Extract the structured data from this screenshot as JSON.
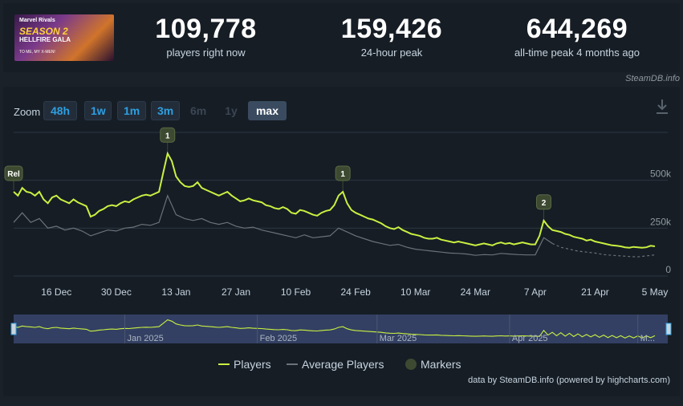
{
  "game": {
    "banner_sub": "Marvel Rivals",
    "banner_title": "SEASON 2",
    "banner_sub2": "HELLFIRE GALA",
    "banner_tag": "TO ME, MY X-MEN!"
  },
  "stats": [
    {
      "value": "109,778",
      "label": "players right now"
    },
    {
      "value": "159,426",
      "label": "24-hour peak"
    },
    {
      "value": "644,269",
      "label": "all-time peak 4 months ago"
    }
  ],
  "credit_top": "SteamDB.info",
  "zoom": {
    "label": "Zoom",
    "buttons": [
      {
        "label": "48h",
        "state": "on"
      },
      {
        "label": "1w",
        "state": "on"
      },
      {
        "label": "1m",
        "state": "on"
      },
      {
        "label": "3m",
        "state": "on"
      },
      {
        "label": "6m",
        "state": "off"
      },
      {
        "label": "1y",
        "state": "off"
      },
      {
        "label": "max",
        "state": "active"
      }
    ]
  },
  "icons": {
    "download": "download-icon"
  },
  "colors": {
    "players": "#c9f041",
    "average": "#6b7278",
    "markers": "#3d4a31",
    "background": "#161d25"
  },
  "footer_note": "data by SteamDB.info (powered by highcharts.com)",
  "chart_data": {
    "type": "line",
    "y_ticks": [
      "0",
      "250k",
      "500k"
    ],
    "ylim": [
      0,
      750000
    ],
    "x_ticks": [
      "16 Dec",
      "30 Dec",
      "13 Jan",
      "27 Jan",
      "10 Feb",
      "24 Feb",
      "10 Mar",
      "24 Mar",
      "7 Apr",
      "21 Apr",
      "5 May"
    ],
    "navigator_labels": [
      "Jan 2025",
      "Feb 2025",
      "Mar 2025",
      "Apr 2025",
      "M..."
    ],
    "legend": [
      {
        "name": "Players",
        "kind": "line"
      },
      {
        "name": "Average Players",
        "kind": "line"
      },
      {
        "name": "Markers",
        "kind": "dot"
      }
    ],
    "x_start": "2024-12-06",
    "series": [
      {
        "name": "Players",
        "points": [
          [
            "2024-12-06",
            440000
          ],
          [
            "2024-12-07",
            420000
          ],
          [
            "2024-12-08",
            460000
          ],
          [
            "2024-12-09",
            440000
          ],
          [
            "2024-12-10",
            435000
          ],
          [
            "2024-12-11",
            420000
          ],
          [
            "2024-12-12",
            440000
          ],
          [
            "2024-12-13",
            400000
          ],
          [
            "2024-12-14",
            380000
          ],
          [
            "2024-12-15",
            410000
          ],
          [
            "2024-12-16",
            420000
          ],
          [
            "2024-12-17",
            400000
          ],
          [
            "2024-12-18",
            390000
          ],
          [
            "2024-12-19",
            380000
          ],
          [
            "2024-12-20",
            400000
          ],
          [
            "2024-12-21",
            385000
          ],
          [
            "2024-12-22",
            375000
          ],
          [
            "2024-12-23",
            365000
          ],
          [
            "2024-12-24",
            310000
          ],
          [
            "2024-12-25",
            320000
          ],
          [
            "2024-12-26",
            340000
          ],
          [
            "2024-12-27",
            350000
          ],
          [
            "2024-12-28",
            365000
          ],
          [
            "2024-12-29",
            370000
          ],
          [
            "2024-12-30",
            365000
          ],
          [
            "2024-12-31",
            380000
          ],
          [
            "2025-01-01",
            390000
          ],
          [
            "2025-01-02",
            385000
          ],
          [
            "2025-01-03",
            400000
          ],
          [
            "2025-01-04",
            410000
          ],
          [
            "2025-01-05",
            420000
          ],
          [
            "2025-01-06",
            425000
          ],
          [
            "2025-01-07",
            420000
          ],
          [
            "2025-01-08",
            430000
          ],
          [
            "2025-01-09",
            440000
          ],
          [
            "2025-01-10",
            540000
          ],
          [
            "2025-01-11",
            640000
          ],
          [
            "2025-01-12",
            600000
          ],
          [
            "2025-01-13",
            520000
          ],
          [
            "2025-01-14",
            490000
          ],
          [
            "2025-01-15",
            470000
          ],
          [
            "2025-01-16",
            465000
          ],
          [
            "2025-01-17",
            470000
          ],
          [
            "2025-01-18",
            490000
          ],
          [
            "2025-01-19",
            460000
          ],
          [
            "2025-01-20",
            450000
          ],
          [
            "2025-01-21",
            440000
          ],
          [
            "2025-01-22",
            430000
          ],
          [
            "2025-01-23",
            420000
          ],
          [
            "2025-01-24",
            430000
          ],
          [
            "2025-01-25",
            440000
          ],
          [
            "2025-01-26",
            420000
          ],
          [
            "2025-01-27",
            405000
          ],
          [
            "2025-01-28",
            390000
          ],
          [
            "2025-01-29",
            395000
          ],
          [
            "2025-01-30",
            405000
          ],
          [
            "2025-01-31",
            395000
          ],
          [
            "2025-02-01",
            390000
          ],
          [
            "2025-02-02",
            385000
          ],
          [
            "2025-02-03",
            370000
          ],
          [
            "2025-02-04",
            365000
          ],
          [
            "2025-02-05",
            355000
          ],
          [
            "2025-02-06",
            350000
          ],
          [
            "2025-02-07",
            360000
          ],
          [
            "2025-02-08",
            350000
          ],
          [
            "2025-02-09",
            330000
          ],
          [
            "2025-02-10",
            325000
          ],
          [
            "2025-02-11",
            345000
          ],
          [
            "2025-02-12",
            340000
          ],
          [
            "2025-02-13",
            330000
          ],
          [
            "2025-02-14",
            320000
          ],
          [
            "2025-02-15",
            315000
          ],
          [
            "2025-02-16",
            330000
          ],
          [
            "2025-02-17",
            340000
          ],
          [
            "2025-02-18",
            345000
          ],
          [
            "2025-02-19",
            370000
          ],
          [
            "2025-02-20",
            420000
          ],
          [
            "2025-02-21",
            440000
          ],
          [
            "2025-02-22",
            380000
          ],
          [
            "2025-02-23",
            345000
          ],
          [
            "2025-02-24",
            330000
          ],
          [
            "2025-02-25",
            320000
          ],
          [
            "2025-02-26",
            310000
          ],
          [
            "2025-02-27",
            300000
          ],
          [
            "2025-02-28",
            295000
          ],
          [
            "2025-03-01",
            285000
          ],
          [
            "2025-03-02",
            275000
          ],
          [
            "2025-03-03",
            260000
          ],
          [
            "2025-03-04",
            250000
          ],
          [
            "2025-03-05",
            245000
          ],
          [
            "2025-03-06",
            255000
          ],
          [
            "2025-03-07",
            240000
          ],
          [
            "2025-03-08",
            230000
          ],
          [
            "2025-03-09",
            220000
          ],
          [
            "2025-03-10",
            215000
          ],
          [
            "2025-03-11",
            210000
          ],
          [
            "2025-03-12",
            200000
          ],
          [
            "2025-03-13",
            195000
          ],
          [
            "2025-03-14",
            195000
          ],
          [
            "2025-03-15",
            200000
          ],
          [
            "2025-03-16",
            190000
          ],
          [
            "2025-03-17",
            185000
          ],
          [
            "2025-03-18",
            180000
          ],
          [
            "2025-03-19",
            175000
          ],
          [
            "2025-03-20",
            180000
          ],
          [
            "2025-03-21",
            175000
          ],
          [
            "2025-03-22",
            170000
          ],
          [
            "2025-03-23",
            165000
          ],
          [
            "2025-03-24",
            160000
          ],
          [
            "2025-03-25",
            165000
          ],
          [
            "2025-03-26",
            170000
          ],
          [
            "2025-03-27",
            165000
          ],
          [
            "2025-03-28",
            160000
          ],
          [
            "2025-03-29",
            170000
          ],
          [
            "2025-03-30",
            175000
          ],
          [
            "2025-03-31",
            168000
          ],
          [
            "2025-04-01",
            172000
          ],
          [
            "2025-04-02",
            165000
          ],
          [
            "2025-04-03",
            170000
          ],
          [
            "2025-04-04",
            175000
          ],
          [
            "2025-04-05",
            170000
          ],
          [
            "2025-04-06",
            165000
          ],
          [
            "2025-04-07",
            165000
          ],
          [
            "2025-04-08",
            210000
          ],
          [
            "2025-04-09",
            290000
          ],
          [
            "2025-04-10",
            260000
          ],
          [
            "2025-04-11",
            240000
          ],
          [
            "2025-04-12",
            235000
          ],
          [
            "2025-04-13",
            230000
          ],
          [
            "2025-04-14",
            220000
          ],
          [
            "2025-04-15",
            215000
          ],
          [
            "2025-04-16",
            205000
          ],
          [
            "2025-04-17",
            200000
          ],
          [
            "2025-04-18",
            195000
          ],
          [
            "2025-04-19",
            185000
          ],
          [
            "2025-04-20",
            190000
          ],
          [
            "2025-04-21",
            180000
          ],
          [
            "2025-04-22",
            175000
          ],
          [
            "2025-04-23",
            170000
          ],
          [
            "2025-04-24",
            165000
          ],
          [
            "2025-04-25",
            160000
          ],
          [
            "2025-04-26",
            158000
          ],
          [
            "2025-04-27",
            155000
          ],
          [
            "2025-04-28",
            150000
          ],
          [
            "2025-04-29",
            148000
          ],
          [
            "2025-04-30",
            152000
          ],
          [
            "2025-05-01",
            150000
          ],
          [
            "2025-05-02",
            148000
          ],
          [
            "2025-05-03",
            150000
          ],
          [
            "2025-05-04",
            158000
          ],
          [
            "2025-05-05",
            155000
          ]
        ]
      },
      {
        "name": "Average Players",
        "points": [
          [
            "2024-12-06",
            280000
          ],
          [
            "2024-12-08",
            330000
          ],
          [
            "2024-12-10",
            280000
          ],
          [
            "2024-12-12",
            300000
          ],
          [
            "2024-12-14",
            250000
          ],
          [
            "2024-12-16",
            260000
          ],
          [
            "2024-12-18",
            240000
          ],
          [
            "2024-12-20",
            250000
          ],
          [
            "2024-12-22",
            235000
          ],
          [
            "2024-12-24",
            210000
          ],
          [
            "2024-12-26",
            225000
          ],
          [
            "2024-12-28",
            240000
          ],
          [
            "2024-12-30",
            235000
          ],
          [
            "2025-01-01",
            250000
          ],
          [
            "2025-01-03",
            255000
          ],
          [
            "2025-01-05",
            270000
          ],
          [
            "2025-01-07",
            265000
          ],
          [
            "2025-01-09",
            280000
          ],
          [
            "2025-01-11",
            420000
          ],
          [
            "2025-01-13",
            320000
          ],
          [
            "2025-01-15",
            300000
          ],
          [
            "2025-01-17",
            290000
          ],
          [
            "2025-01-19",
            300000
          ],
          [
            "2025-01-21",
            280000
          ],
          [
            "2025-01-23",
            270000
          ],
          [
            "2025-01-25",
            280000
          ],
          [
            "2025-01-27",
            260000
          ],
          [
            "2025-01-29",
            250000
          ],
          [
            "2025-01-31",
            255000
          ],
          [
            "2025-02-02",
            240000
          ],
          [
            "2025-02-04",
            230000
          ],
          [
            "2025-02-06",
            220000
          ],
          [
            "2025-02-08",
            210000
          ],
          [
            "2025-02-10",
            200000
          ],
          [
            "2025-02-12",
            215000
          ],
          [
            "2025-02-14",
            200000
          ],
          [
            "2025-02-16",
            205000
          ],
          [
            "2025-02-18",
            210000
          ],
          [
            "2025-02-20",
            250000
          ],
          [
            "2025-02-22",
            230000
          ],
          [
            "2025-02-24",
            210000
          ],
          [
            "2025-02-26",
            195000
          ],
          [
            "2025-02-28",
            180000
          ],
          [
            "2025-03-02",
            170000
          ],
          [
            "2025-03-04",
            160000
          ],
          [
            "2025-03-06",
            165000
          ],
          [
            "2025-03-08",
            150000
          ],
          [
            "2025-03-10",
            140000
          ],
          [
            "2025-03-12",
            135000
          ],
          [
            "2025-03-14",
            130000
          ],
          [
            "2025-03-16",
            125000
          ],
          [
            "2025-03-18",
            120000
          ],
          [
            "2025-03-20",
            118000
          ],
          [
            "2025-03-22",
            115000
          ],
          [
            "2025-03-24",
            108000
          ],
          [
            "2025-03-26",
            112000
          ],
          [
            "2025-03-28",
            110000
          ],
          [
            "2025-03-30",
            118000
          ],
          [
            "2025-04-01",
            115000
          ],
          [
            "2025-04-03",
            112000
          ],
          [
            "2025-04-05",
            110000
          ],
          [
            "2025-04-07",
            110000
          ],
          [
            "2025-04-09",
            200000
          ],
          [
            "2025-04-11",
            170000
          ],
          [
            "2025-04-13",
            150000
          ],
          [
            "2025-04-15",
            140000
          ],
          [
            "2025-04-17",
            130000
          ],
          [
            "2025-04-19",
            125000
          ],
          [
            "2025-04-21",
            120000
          ],
          [
            "2025-04-23",
            112000
          ],
          [
            "2025-04-25",
            108000
          ],
          [
            "2025-04-27",
            105000
          ],
          [
            "2025-04-29",
            102000
          ],
          [
            "2025-05-01",
            100000
          ],
          [
            "2025-05-03",
            105000
          ],
          [
            "2025-05-05",
            110000
          ]
        ]
      }
    ],
    "markers": [
      {
        "label": "Rel",
        "date": "2024-12-06",
        "value": 440000
      },
      {
        "label": "1",
        "date": "2025-01-11",
        "value": 640000
      },
      {
        "label": "1",
        "date": "2025-02-21",
        "value": 440000
      },
      {
        "label": "2",
        "date": "2025-04-09",
        "value": 290000
      }
    ]
  }
}
